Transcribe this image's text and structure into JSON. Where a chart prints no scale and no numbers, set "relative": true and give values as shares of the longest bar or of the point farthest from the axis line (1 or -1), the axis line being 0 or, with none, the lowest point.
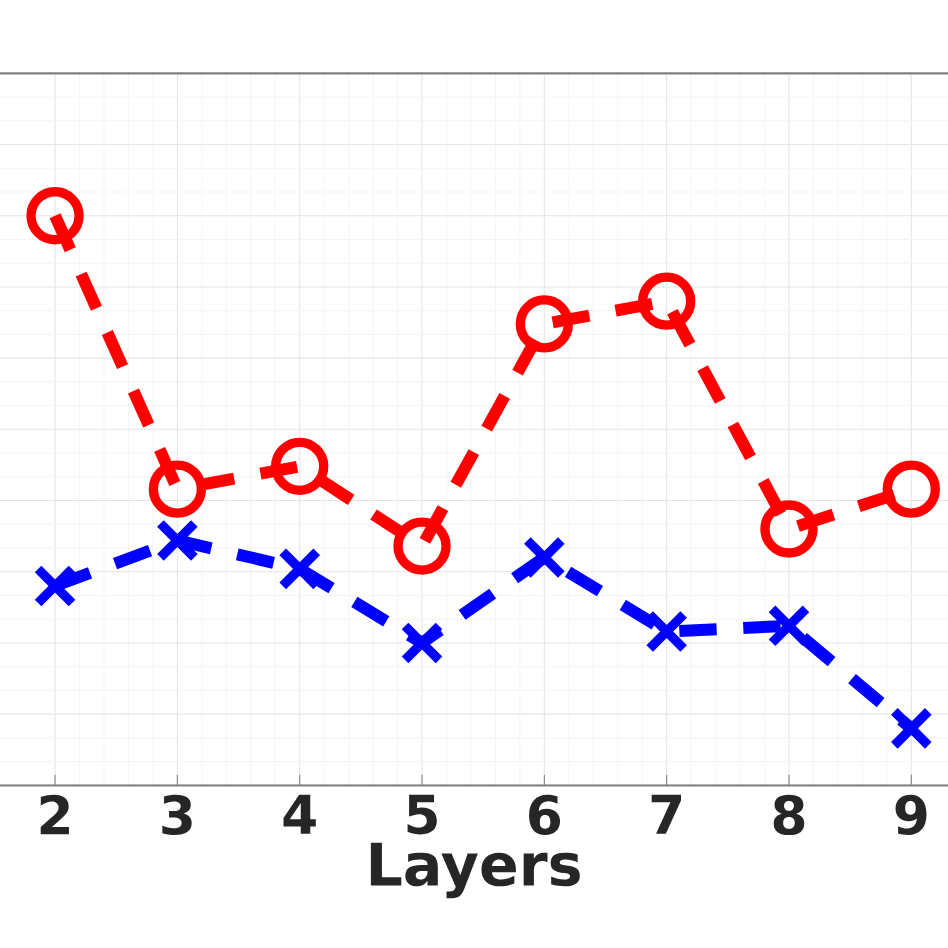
{
  "chart_data": {
    "type": "line",
    "xlabel": "Layers",
    "x": [
      2,
      3,
      4,
      5,
      6,
      7,
      8,
      9
    ],
    "xlim": [
      1.55,
      9.3
    ],
    "xticks": [
      2,
      3,
      4,
      5,
      6,
      7,
      8,
      9
    ],
    "relative": true,
    "grid": true,
    "line_style": "dashed",
    "series": [
      {
        "color": "#ff0000",
        "marker": "circle",
        "values": [
          1.0,
          0.52,
          0.56,
          0.42,
          0.81,
          0.85,
          0.45,
          0.52
        ]
      },
      {
        "color": "#0000ff",
        "marker": "cross",
        "values": [
          0.35,
          0.43,
          0.38,
          0.25,
          0.4,
          0.27,
          0.28,
          0.1
        ]
      }
    ]
  }
}
